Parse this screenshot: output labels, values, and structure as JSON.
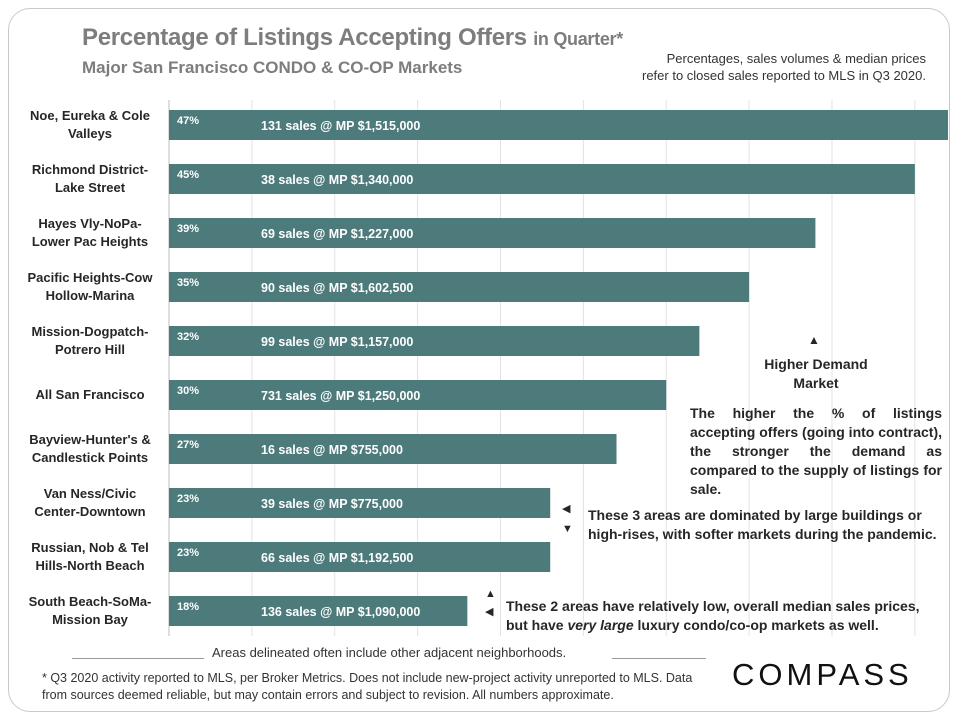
{
  "title": {
    "main": "Percentage of Listings Accepting Offers",
    "suffix": "in Quarter*",
    "subtitle": "Major San Francisco CONDO & CO-OP Markets"
  },
  "top_note": {
    "line1": "Percentages, sales volumes & median prices",
    "line2": "refer to closed sales reported to MLS in Q3 2020."
  },
  "chart_data": {
    "type": "bar",
    "orientation": "horizontal",
    "title": "Percentage of Listings Accepting Offers in Quarter*",
    "subtitle": "Major San Francisco CONDO & CO-OP Markets",
    "xlim": [
      0,
      47
    ],
    "grid": "vertical",
    "bar_color": "#4d7a7b",
    "categories": [
      [
        "Noe, Eureka & Cole",
        "Valleys"
      ],
      [
        "Richmond District-",
        "Lake Street"
      ],
      [
        "Hayes Vly-NoPa-",
        "Lower Pac Heights"
      ],
      [
        "Pacific Heights-Cow",
        "Hollow-Marina"
      ],
      [
        "Mission-Dogpatch-",
        "Potrero Hill"
      ],
      [
        "All San Francisco"
      ],
      [
        "Bayview-Hunter's &",
        "Candlestick Points"
      ],
      [
        "Van Ness/Civic",
        "Center-Downtown"
      ],
      [
        "Russian, Nob & Tel",
        "Hills-North Beach"
      ],
      [
        "South Beach-SoMa-",
        "Mission Bay"
      ]
    ],
    "values": [
      47,
      45,
      39,
      35,
      32,
      30,
      27,
      23,
      23,
      18
    ],
    "value_labels": [
      "47%",
      "45%",
      "39%",
      "35%",
      "32%",
      "30%",
      "27%",
      "23%",
      "23%",
      "18%"
    ],
    "bar_annotations": [
      "131 sales @ MP $1,515,000",
      "38 sales @ MP $1,340,000",
      "69 sales @ MP $1,227,000",
      "90 sales @ MP $1,602,500",
      "99 sales @ MP $1,157,000",
      "731 sales @ MP $1,250,000",
      "16 sales @ MP $755,000",
      "39 sales @ MP $775,000",
      "66 sales @ MP $1,192,500",
      "136 sales @ MP $1,090,000"
    ]
  },
  "annotations": {
    "higher_demand_arrow": "▲",
    "higher_demand_line1": "Higher Demand",
    "higher_demand_line2": "Market",
    "demand_description": "The higher the % of listings accepting offers (going into contract), the stronger the demand as compared to the supply of listings for sale.",
    "highrise_arrow_left": "◀",
    "highrise_arrow_down": "▼",
    "highrise_line1": "These 3 areas are dominated by large buildings or",
    "highrise_line2": "high-rises, with softer markets during the pandemic.",
    "lowprice_arrow_up": "▲",
    "lowprice_arrow_left": "◀",
    "lowprice_line1": "These 2 areas have relatively low, overall median sales prices,",
    "lowprice_line2_a": "but have ",
    "lowprice_line2_em": "very large",
    "lowprice_line2_b": " luxury condo/co-op markets as well."
  },
  "footer": {
    "areas_note": "Areas delineated often include other adjacent neighborhoods.",
    "footnote": "* Q3 2020 activity reported to MLS, per Broker Metrics. Does not include new-project activity unreported to MLS. Data from sources deemed reliable, but may contain errors and subject to revision. All numbers approximate.",
    "logo": "COMPASS"
  }
}
